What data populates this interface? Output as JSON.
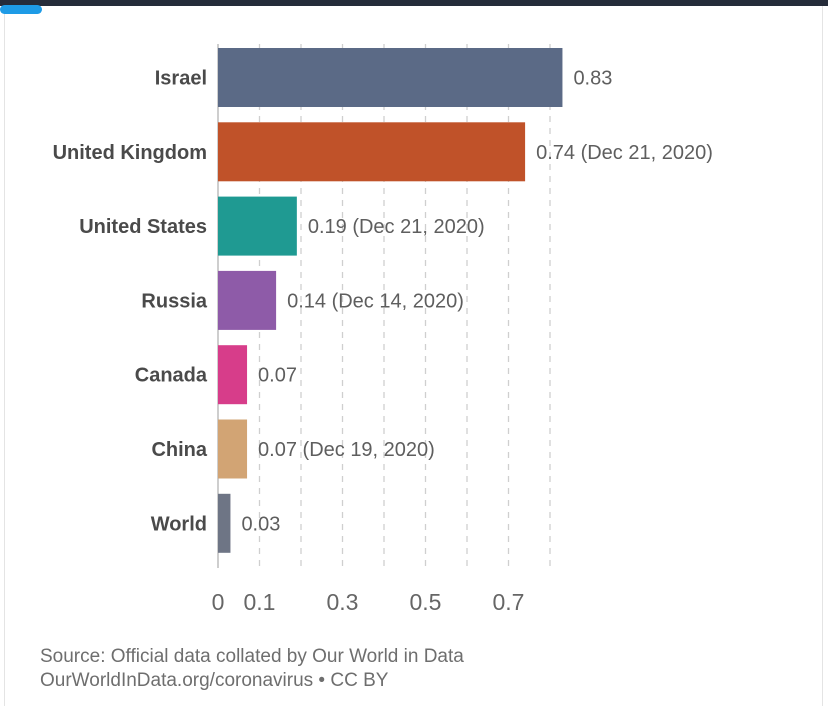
{
  "chart_data": {
    "type": "bar",
    "orientation": "horizontal",
    "categories": [
      "Israel",
      "United Kingdom",
      "United States",
      "Russia",
      "Canada",
      "China",
      "World"
    ],
    "values": [
      0.83,
      0.74,
      0.19,
      0.14,
      0.07,
      0.07,
      0.03
    ],
    "value_labels": [
      "0.83",
      "0.74 (Dec 21, 2020)",
      "0.19 (Dec 21, 2020)",
      "0.14 (Dec 14, 2020)",
      "0.07",
      "0.07 (Dec 19, 2020)",
      "0.03"
    ],
    "colors": [
      "#5b6a86",
      "#c05229",
      "#1f9a92",
      "#8e5ba8",
      "#d73d8a",
      "#d2a474",
      "#6e7585"
    ],
    "x_ticks": [
      "0",
      "0.1",
      "0.3",
      "0.5",
      "0.7"
    ],
    "x_tick_values": [
      0,
      0.1,
      0.3,
      0.5,
      0.7
    ],
    "grid_values": [
      0.1,
      0.2,
      0.3,
      0.4,
      0.5,
      0.6,
      0.7,
      0.8
    ],
    "xlim": [
      0,
      0.83
    ],
    "grid": true
  },
  "source": {
    "line1": "Source: Official data collated by Our World in Data",
    "line2": "OurWorldInData.org/coronavirus • CC BY"
  }
}
